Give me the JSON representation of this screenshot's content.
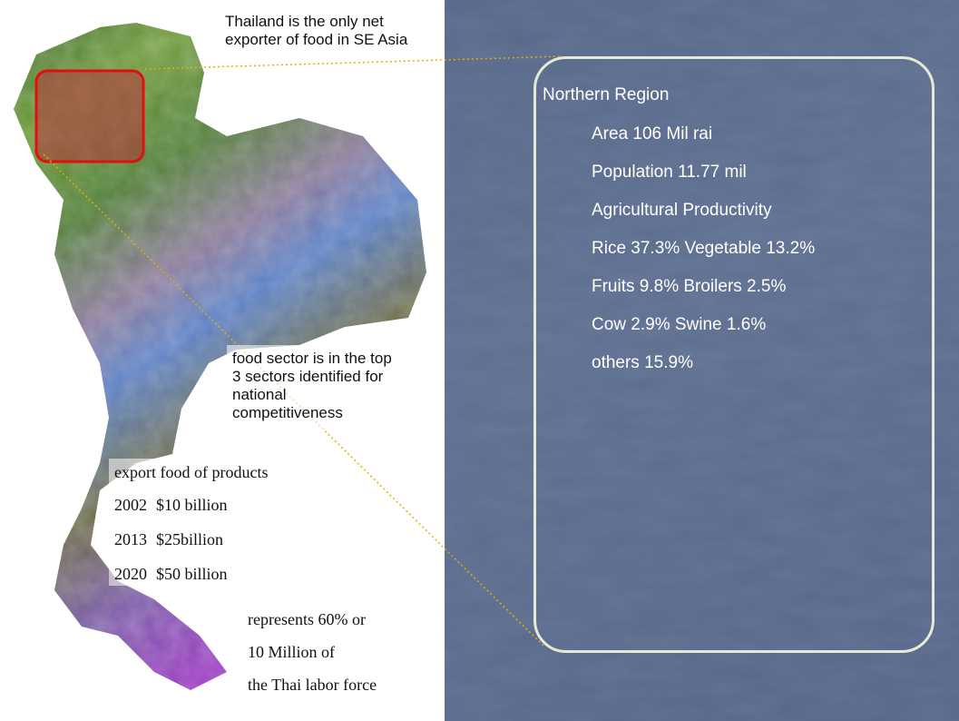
{
  "map_callouts": {
    "export_leader": [
      "Thailand is the only net",
      "exporter of food in SE Asia"
    ],
    "food_sector": [
      "food sector is in the top",
      "3 sectors identified for",
      "national",
      "competitiveness"
    ],
    "exports": {
      "title": "export food of products",
      "rows": [
        [
          "2002",
          "$10 billion"
        ],
        [
          "2013",
          "$25billion"
        ],
        [
          "2020",
          "$50 billion"
        ]
      ]
    },
    "labor": [
      "represents 60% or",
      "10 Million of",
      "the Thai labor force"
    ]
  },
  "region_panel": {
    "title": "Northern Region",
    "items": [
      "Area 106 Mil rai",
      "Population 11.77 mil",
      "Agricultural Productivity",
      "Rice 37.3% Vegetable 13.2%",
      "Fruits 9.8% Broilers 2.5%",
      "Cow 2.9%  Swine 1.6%",
      "others 15.9%"
    ]
  }
}
